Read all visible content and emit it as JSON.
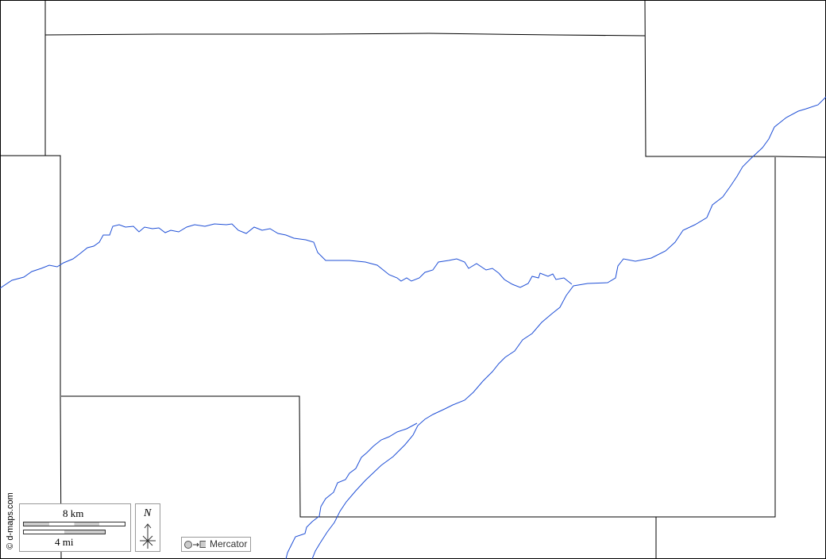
{
  "credit": "© d-maps.com",
  "scale": {
    "km_label": "8 km",
    "mi_label": "4 mi"
  },
  "north_label": "N",
  "projection": {
    "label": "Mercator",
    "icon": "circle-to-square-icon"
  },
  "colors": {
    "river": "#1f4fd6",
    "boundary": "#000000",
    "frame_border": "#999999"
  }
}
